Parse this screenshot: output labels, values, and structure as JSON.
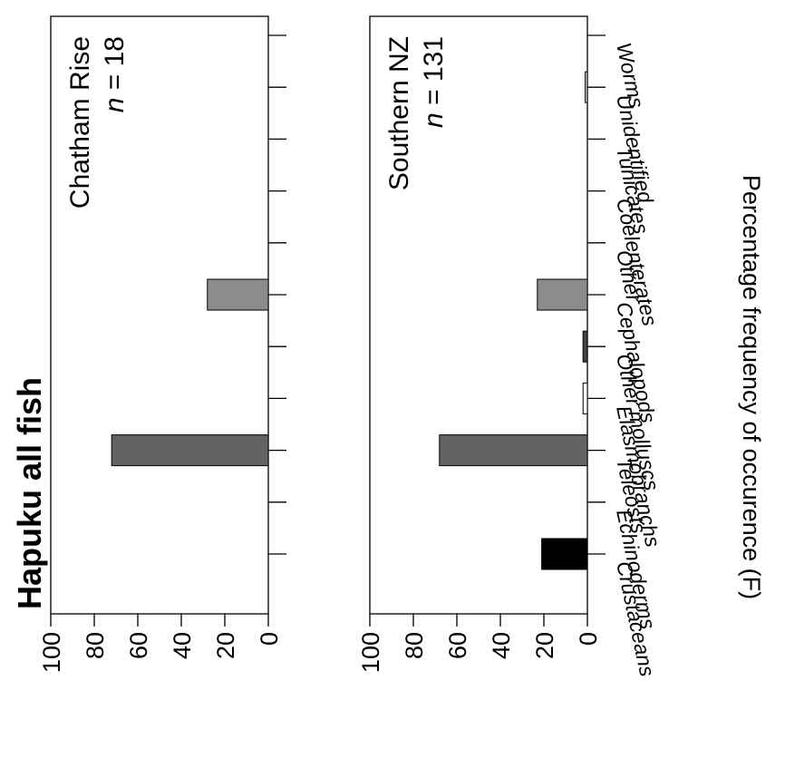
{
  "chart_data": [
    {
      "type": "bar",
      "title": "Hapuku all fish",
      "panel_label": "Chatham Rise",
      "n_label": "n",
      "n_value": "= 18",
      "ylabel": "Percentage frequency of occurence (F)",
      "ylim": [
        0,
        100
      ],
      "yticks": [
        "0",
        "20",
        "40",
        "60",
        "80",
        "100"
      ],
      "categories": [
        "Crustaceans",
        "Echinoderms",
        "Teleosts",
        "Elasmobranchs",
        "Other molluscs",
        "Cephalopods",
        "Other",
        "Coelenterates",
        "Tunicates",
        "Unidentified",
        "Worms"
      ],
      "values": [
        0,
        0,
        72,
        0,
        0,
        28,
        0,
        0,
        0,
        0,
        0
      ],
      "colors": [
        "#000000",
        "#7a7a7a",
        "#636363",
        "#ffffff",
        "#444444",
        "#8c8c8c",
        "#9a9a9a",
        "#a8a8a8",
        "#b8b8b8",
        "#d0d0d0",
        "#e0e0e0"
      ]
    },
    {
      "type": "bar",
      "panel_label": "Southern NZ",
      "n_label": "n",
      "n_value": "= 131",
      "ylabel": "Percentage frequency of occurence (F)",
      "ylim": [
        0,
        100
      ],
      "yticks": [
        "0",
        "20",
        "40",
        "60",
        "80",
        "100"
      ],
      "categories": [
        "Crustaceans",
        "Echinoderms",
        "Teleosts",
        "Elasmobranchs",
        "Other molluscs",
        "Cephalopods",
        "Other",
        "Coelenterates",
        "Tunicates",
        "Unidentified",
        "Worms"
      ],
      "values": [
        21,
        0,
        68,
        2,
        2,
        23,
        0,
        0,
        0,
        1,
        0
      ],
      "colors": [
        "#000000",
        "#7a7a7a",
        "#636363",
        "#ffffff",
        "#444444",
        "#8c8c8c",
        "#9a9a9a",
        "#a8a8a8",
        "#b8b8b8",
        "#d0d0d0",
        "#e0e0e0"
      ]
    }
  ]
}
